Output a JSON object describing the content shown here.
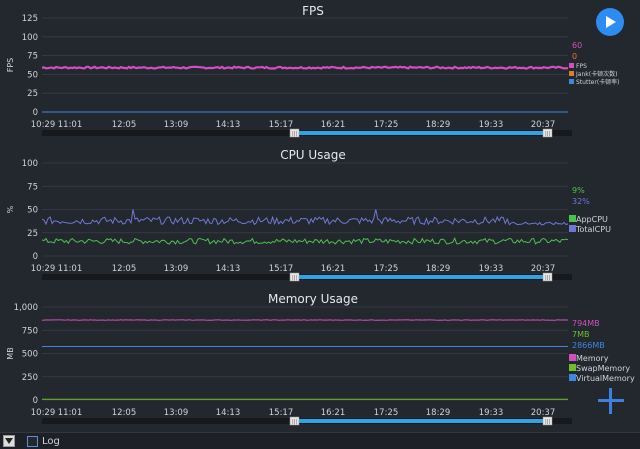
{
  "theme": {
    "bg": "#23272e",
    "grid": "#3a3f47",
    "text": "#cfd3d8",
    "accent": "#2d8cf0"
  },
  "toolbar": {
    "play_icon": "play-icon",
    "add_icon": "plus-icon"
  },
  "bottom_bar": {
    "log_label": "Log",
    "dropdown_icon": "triangle-down-icon"
  },
  "chart_data": [
    {
      "type": "line",
      "title": "FPS",
      "ylabel": "FPS",
      "ylim": [
        0,
        125
      ],
      "yticks": [
        "0",
        "25",
        "50",
        "75",
        "100",
        "125"
      ],
      "xticks": [
        "10:29",
        "11:01",
        "12:05",
        "13:09",
        "14:13",
        "15:17",
        "16:21",
        "17:25",
        "18:29",
        "19:33",
        "20:37"
      ],
      "current_values": [
        "60",
        "0"
      ],
      "series": [
        {
          "name": "FPS",
          "color": "#d14fbf",
          "base": 59,
          "noise": 1.2
        },
        {
          "name": "Jank(卡顿次数)",
          "color": "#e07b30",
          "base": 0,
          "noise": 0
        },
        {
          "name": "Stutter(卡顿率)",
          "color": "#3f86e0",
          "base": 0,
          "noise": 0
        }
      ],
      "scroll_handle": "|||"
    },
    {
      "type": "line",
      "title": "CPU Usage",
      "ylabel": "%",
      "ylim": [
        0,
        100
      ],
      "yticks": [
        "0",
        "25",
        "50",
        "75",
        "100"
      ],
      "xticks": [
        "10:29",
        "11:01",
        "12:05",
        "13:09",
        "14:13",
        "15:17",
        "16:21",
        "17:25",
        "18:29",
        "19:33",
        "20:37"
      ],
      "current_values": [
        "9%",
        "32%"
      ],
      "series": [
        {
          "name": "AppCPU",
          "color": "#4cc24c",
          "base": 16,
          "noise": 3
        },
        {
          "name": "TotalCPU",
          "color": "#6f77d6",
          "base": 38,
          "noise": 4
        }
      ],
      "scroll_handle": "|||"
    },
    {
      "type": "line",
      "title": "Memory Usage",
      "ylabel": "MB",
      "ylim": [
        0,
        1000
      ],
      "yticks": [
        "0",
        "250",
        "500",
        "750",
        "1,000"
      ],
      "xticks": [
        "10:29",
        "11:01",
        "12:05",
        "13:09",
        "14:13",
        "15:17",
        "16:21",
        "17:25",
        "18:29",
        "19:33",
        "20:37"
      ],
      "current_values": [
        "794MB",
        "7MB",
        "2866MB"
      ],
      "series": [
        {
          "name": "Memory",
          "color": "#d14fbf",
          "base": 860,
          "noise": 2
        },
        {
          "name": "SwapMemory",
          "color": "#6fbf2c",
          "base": 7,
          "noise": 0
        },
        {
          "name": "VirtualMemory",
          "color": "#3f86e0",
          "base": 575,
          "noise": 0
        }
      ],
      "scroll_handle": "|||"
    }
  ]
}
